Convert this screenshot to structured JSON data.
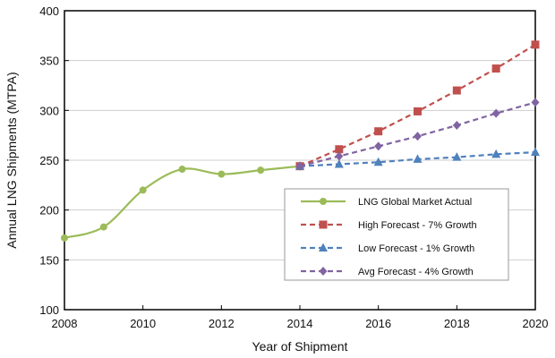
{
  "chart_data": {
    "type": "line",
    "title": "",
    "xlabel": "Year of Shipment",
    "ylabel": "Annual LNG Shipments (MTPA)",
    "xlim": [
      2008,
      2020
    ],
    "ylim": [
      100,
      400
    ],
    "x_ticks": [
      2008,
      2010,
      2012,
      2014,
      2016,
      2018,
      2020
    ],
    "y_ticks": [
      100,
      150,
      200,
      250,
      300,
      350,
      400
    ],
    "grid": "horizontal",
    "legend_position": "center-right",
    "series": [
      {
        "name": "LNG Global Market Actual",
        "style": "solid",
        "marker": "circle",
        "color": "#9bbb59",
        "smooth": true,
        "x": [
          2008,
          2009,
          2010,
          2011,
          2012,
          2013,
          2014
        ],
        "y": [
          172,
          183,
          220,
          241,
          236,
          240,
          244
        ]
      },
      {
        "name": "High Forecast - 7% Growth",
        "style": "dashed",
        "marker": "square",
        "color": "#c0504d",
        "x": [
          2014,
          2015,
          2016,
          2017,
          2018,
          2019,
          2020
        ],
        "y": [
          244,
          261,
          279,
          299,
          320,
          342,
          366
        ]
      },
      {
        "name": "Low Forecast - 1% Growth",
        "style": "dashed",
        "marker": "triangle",
        "color": "#4f81bd",
        "x": [
          2014,
          2015,
          2016,
          2017,
          2018,
          2019,
          2020
        ],
        "y": [
          244,
          246,
          248,
          251,
          253,
          256,
          258
        ]
      },
      {
        "name": "Avg Forecast - 4% Growth",
        "style": "dashed",
        "marker": "diamond",
        "color": "#8064a2",
        "x": [
          2014,
          2015,
          2016,
          2017,
          2018,
          2019,
          2020
        ],
        "y": [
          244,
          254,
          264,
          274,
          285,
          297,
          308
        ]
      }
    ]
  }
}
